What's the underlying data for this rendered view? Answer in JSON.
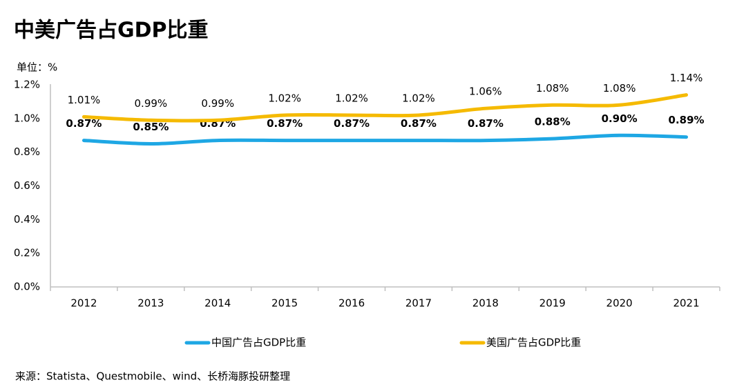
{
  "chart_data": {
    "type": "line",
    "title": "中美广告占GDP比重",
    "unit_label": "单位：%",
    "source": "来源：Statista、Questmobile、wind、长桥海豚投研整理",
    "categories": [
      "2012",
      "2013",
      "2014",
      "2015",
      "2016",
      "2017",
      "2018",
      "2019",
      "2020",
      "2021"
    ],
    "series": [
      {
        "name": "中国广告占GDP比重",
        "color": "#1ea7e4",
        "values": [
          0.87,
          0.85,
          0.87,
          0.87,
          0.87,
          0.87,
          0.87,
          0.88,
          0.9,
          0.89
        ],
        "value_labels": [
          "0.87%",
          "0.85%",
          "0.87%",
          "0.87%",
          "0.87%",
          "0.87%",
          "0.87%",
          "0.88%",
          "0.90%",
          "0.89%"
        ]
      },
      {
        "name": "美国广告占GDP比重",
        "color": "#f5ba00",
        "values": [
          1.01,
          0.99,
          0.99,
          1.02,
          1.02,
          1.02,
          1.06,
          1.08,
          1.08,
          1.14
        ],
        "value_labels": [
          "1.01%",
          "0.99%",
          "0.99%",
          "1.02%",
          "1.02%",
          "1.02%",
          "1.06%",
          "1.08%",
          "1.08%",
          "1.14%"
        ]
      }
    ],
    "ylim": [
      0,
      1.2
    ],
    "yticks": [
      {
        "value": 0,
        "label": "0.0%"
      },
      {
        "value": 0.2,
        "label": "0.2%"
      },
      {
        "value": 0.4,
        "label": "0.4%"
      },
      {
        "value": 0.6,
        "label": "0.6%"
      },
      {
        "value": 0.8,
        "label": "0.8%"
      },
      {
        "value": 1.0,
        "label": "1.0%"
      },
      {
        "value": 1.2,
        "label": "1.2%"
      }
    ],
    "grid": false,
    "smooth": true,
    "legend": "bottom"
  }
}
